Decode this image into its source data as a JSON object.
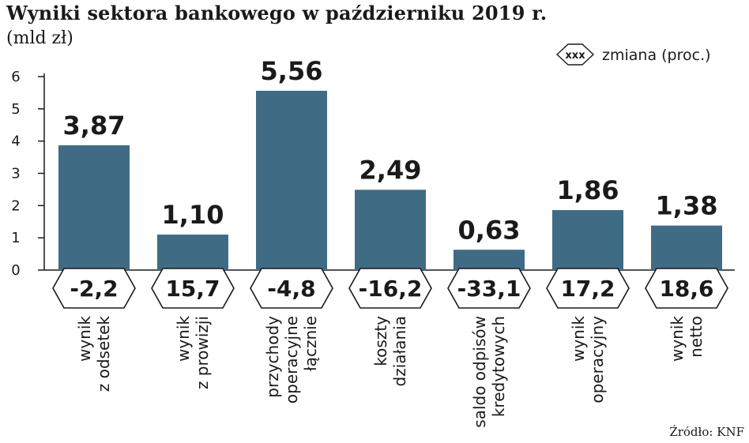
{
  "chart_data": {
    "type": "bar",
    "title": "Wyniki sektora bankowego w październiku 2019 r.",
    "subtitle": "(mld zł)",
    "source": "Źródło: KNF",
    "legend": {
      "symbol_text": "xxx",
      "label": "zmiana (proc.)",
      "placement": "top-right"
    },
    "categories": [
      [
        "wynik",
        "z odsetek"
      ],
      [
        "wynik",
        "z prowizji"
      ],
      [
        "przychody",
        "operacyjne",
        "łącznie"
      ],
      [
        "koszty",
        "działania"
      ],
      [
        "saldo odpisów",
        "kredytowych"
      ],
      [
        "wynik",
        "operacyjny"
      ],
      [
        "wynik",
        "netto"
      ]
    ],
    "values": [
      3.87,
      1.1,
      5.56,
      2.49,
      0.63,
      1.86,
      1.38
    ],
    "value_labels": [
      "3,87",
      "1,10",
      "5,56",
      "2,49",
      "0,63",
      "1,86",
      "1,38"
    ],
    "change_labels": [
      "-2,2",
      "15,7",
      "-4,8",
      "-16,2",
      "-33,1",
      "17,2",
      "18,6"
    ],
    "yticks": [
      0,
      1,
      2,
      3,
      4,
      5,
      6
    ],
    "ylim": [
      0,
      6
    ],
    "grid": false,
    "colors": {
      "bar": "#3f6b85",
      "text": "#1a1a1a",
      "axis": "#1a1a1a"
    }
  }
}
